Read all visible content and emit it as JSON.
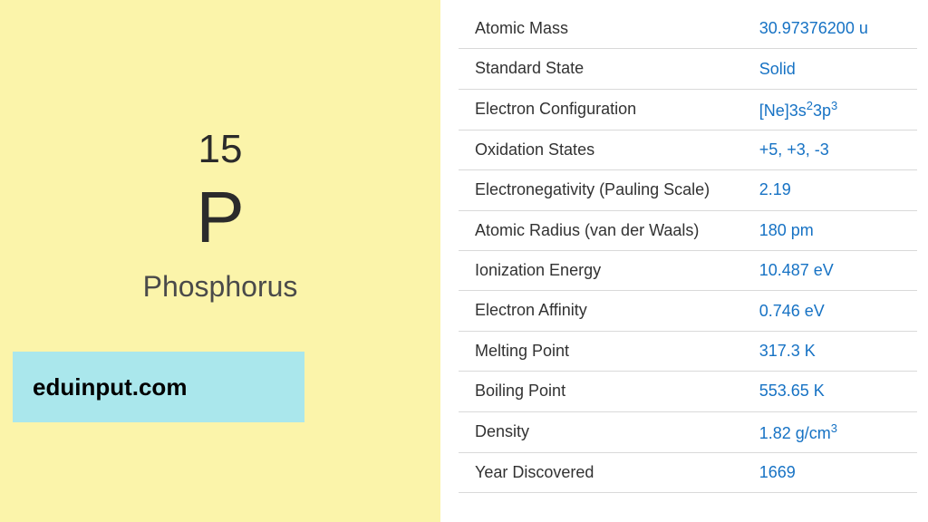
{
  "colors": {
    "left_bg": "#fbf4aa",
    "watermark_bg": "#aae7ec",
    "text_dark": "#2b2b2b",
    "text_gray": "#4a4a4a",
    "label_color": "#323232",
    "value_color": "#1672c4",
    "border_color": "#d9d9d9"
  },
  "element": {
    "atomic_number": "15",
    "symbol": "P",
    "name": "Phosphorus"
  },
  "watermark": "eduinput.com",
  "properties": [
    {
      "label": "Atomic Mass",
      "value_html": "30.97376200 u"
    },
    {
      "label": "Standard State",
      "value_html": "Solid"
    },
    {
      "label": "Electron Configuration",
      "value_html": "[Ne]3s<sup>2</sup>3p<sup>3</sup>"
    },
    {
      "label": "Oxidation States",
      "value_html": "+5, +3, -3"
    },
    {
      "label": "Electronegativity (Pauling Scale)",
      "value_html": "2.19"
    },
    {
      "label": "Atomic Radius (van der Waals)",
      "value_html": "180 pm"
    },
    {
      "label": "Ionization Energy",
      "value_html": "10.487 eV"
    },
    {
      "label": "Electron Affinity",
      "value_html": "0.746 eV"
    },
    {
      "label": "Melting Point",
      "value_html": "317.3 K"
    },
    {
      "label": "Boiling Point",
      "value_html": "553.65 K"
    },
    {
      "label": "Density",
      "value_html": "1.82 g/cm<sup>3</sup>"
    },
    {
      "label": "Year Discovered",
      "value_html": "1669"
    }
  ]
}
